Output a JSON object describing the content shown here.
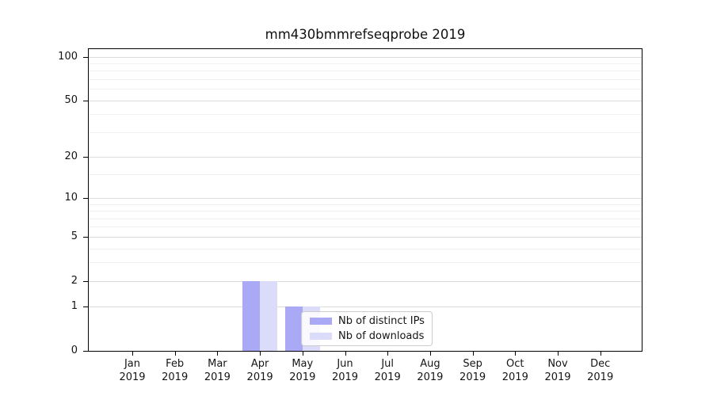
{
  "chart_data": {
    "type": "bar",
    "title": "mm430bmmrefseqprobe 2019",
    "x": {
      "categories": [
        "Jan",
        "Feb",
        "Mar",
        "Apr",
        "May",
        "Jun",
        "Jul",
        "Aug",
        "Sep",
        "Oct",
        "Nov",
        "Dec"
      ],
      "year_label": "2019"
    },
    "series": [
      {
        "name": "Nb of distinct IPs",
        "color": "#a9a9f5",
        "values": [
          0,
          0,
          0,
          2,
          1,
          0,
          0,
          0,
          0,
          0,
          0,
          0
        ]
      },
      {
        "name": "Nb of downloads",
        "color": "#dbdbfa",
        "values": [
          0,
          0,
          0,
          2,
          1,
          0,
          0,
          0,
          0,
          0,
          0,
          0
        ]
      }
    ],
    "y_axis": {
      "scale": "log1p",
      "ticks": [
        0,
        1,
        2,
        5,
        10,
        20,
        50,
        100
      ],
      "minor_gridlines": [
        3,
        4,
        6,
        7,
        8,
        9,
        15,
        30,
        40,
        60,
        70,
        80,
        90
      ],
      "max": 113
    },
    "legend": {
      "position": "lower center",
      "entries": [
        "Nb of distinct IPs",
        "Nb of downloads"
      ]
    },
    "colors": {
      "major_grid": "#dcdcdc",
      "minor_grid": "#f1f1f1",
      "axis": "#000000"
    }
  }
}
